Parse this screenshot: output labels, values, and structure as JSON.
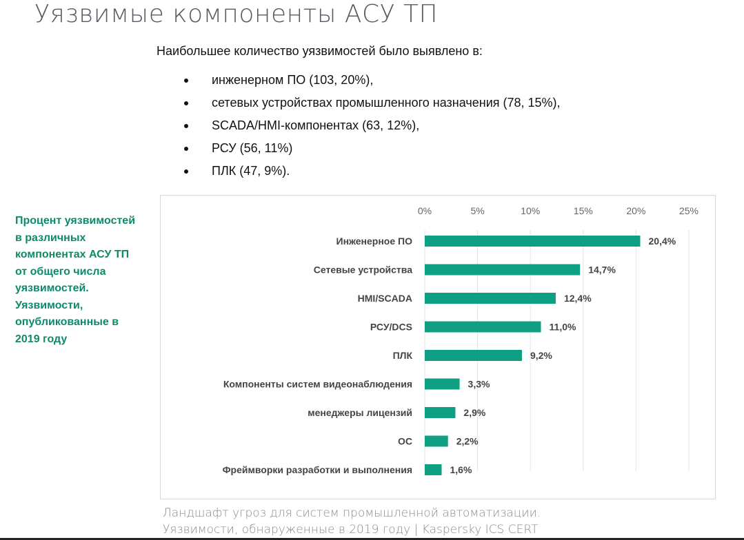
{
  "slide": {
    "title": "Уязвимые компоненты АСУ ТП",
    "intro": "Наибольшее количество уязвимостей было выявлено в:",
    "bullets": [
      "инженерном ПО (103, 20%),",
      "сетевых устройствах промышленного назначения (78, 15%),",
      "SCADA/HMI-компонентах (63, 12%),",
      "РСУ (56, 11%)",
      "ПЛК (47, 9%)."
    ],
    "side_caption": "Процент уязвимостей в различных компонентах АСУ ТП от общего числа уязвимостей. Уязвимости, опубликованные в 2019 году",
    "source_line1": "Ландшафт угроз для систем промышленной автоматизации.",
    "source_line2": "Уязвимости, обнаруженные в 2019 году | Kaspersky ICS CERT"
  },
  "chart_data": {
    "type": "bar",
    "orientation": "horizontal",
    "title": "",
    "xlabel": "",
    "ylabel": "",
    "xlim": [
      0,
      25
    ],
    "x_ticks": [
      "0%",
      "5%",
      "10%",
      "15%",
      "20%",
      "25%"
    ],
    "x_tick_values": [
      0,
      5,
      10,
      15,
      20,
      25
    ],
    "grid": true,
    "categories": [
      "Инженерное ПО",
      "Сетевые устройства",
      "HMI/SCADA",
      "РСУ/DCS",
      "ПЛК",
      "Компоненты систем видеонаблюдения",
      "менеджеры лицензий",
      "ОС",
      "Фреймворки разработки и выполнения"
    ],
    "values": [
      20.4,
      14.7,
      12.4,
      11.0,
      9.2,
      3.3,
      2.9,
      2.2,
      1.6
    ],
    "data_labels": [
      "20,4%",
      "14,7%",
      "12,4%",
      "11,0%",
      "9,2%",
      "3,3%",
      "2,9%",
      "2,2%",
      "1,6%"
    ],
    "bar_color": "#0fa083"
  }
}
